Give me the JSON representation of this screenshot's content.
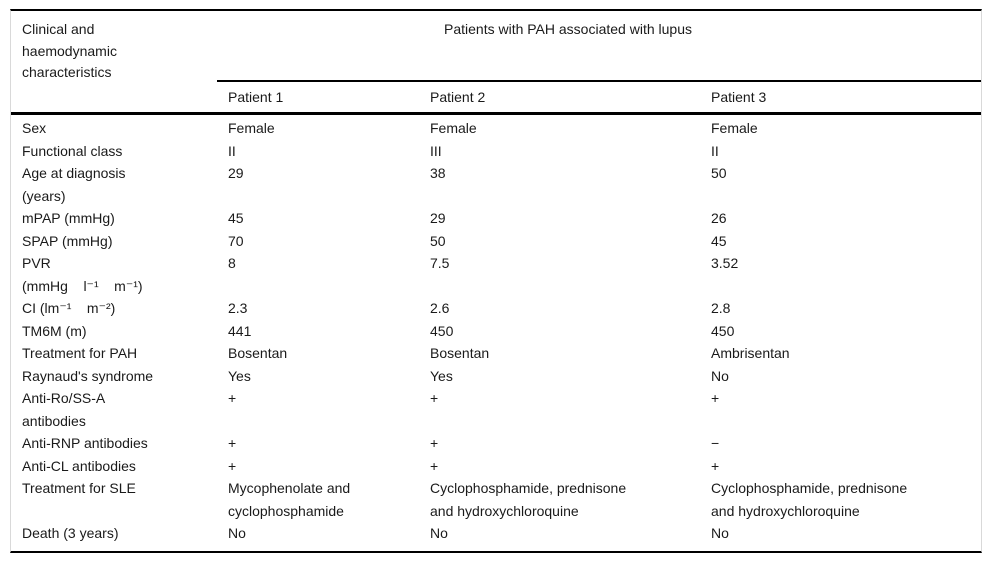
{
  "table": {
    "corner_header": "Clinical and\nhaemodynamic\ncharacteristics",
    "spanner_title": "Patients with PAH associated with lupus",
    "col_headers": [
      "Patient 1",
      "Patient 2",
      "Patient 3"
    ],
    "rows": [
      {
        "label": "Sex",
        "p1": "Female",
        "p2": "Female",
        "p3": "Female"
      },
      {
        "label": "Functional class",
        "p1": "II",
        "p2": "III",
        "p3": "II"
      },
      {
        "label": "Age at diagnosis\n(years)",
        "p1": "29",
        "p2": "38",
        "p3": "50"
      },
      {
        "label": "mPAP (mmHg)",
        "p1": "45",
        "p2": "29",
        "p3": "26"
      },
      {
        "label": "SPAP (mmHg)",
        "p1": "70",
        "p2": "50",
        "p3": "45"
      },
      {
        "label": "PVR\n(mmHg    l⁻¹    m⁻¹)",
        "p1": "8",
        "p2": "7.5",
        "p3": "3.52"
      },
      {
        "label": "CI (lm⁻¹    m⁻²)",
        "p1": "2.3",
        "p2": "2.6",
        "p3": "2.8"
      },
      {
        "label": "TM6M (m)",
        "p1": "441",
        "p2": "450",
        "p3": "450"
      },
      {
        "label": "Treatment for PAH",
        "p1": "Bosentan",
        "p2": "Bosentan",
        "p3": "Ambrisentan"
      },
      {
        "label": "Raynaud's syndrome",
        "p1": "Yes",
        "p2": "Yes",
        "p3": "No"
      },
      {
        "label": "Anti-Ro/SS-A\nantibodies",
        "p1": "+",
        "p2": "+",
        "p3": "+"
      },
      {
        "label": "Anti-RNP antibodies",
        "p1": "+",
        "p2": "+",
        "p3": "−"
      },
      {
        "label": "Anti-CL antibodies",
        "p1": "+",
        "p2": "+",
        "p3": "+"
      },
      {
        "label": "Treatment for SLE",
        "p1": "Mycophenolate and\ncyclophosphamide",
        "p2": "Cyclophosphamide, prednisone\nand hydroxychloroquine",
        "p3": "Cyclophosphamide, prednisone\nand hydroxychloroquine"
      },
      {
        "label": "Death (3 years)",
        "p1": "No",
        "p2": "No",
        "p3": "No"
      }
    ],
    "colors": {
      "text": "#1a1a1a",
      "rule": "#000000",
      "frame_edge": "#d9d9d9",
      "background": "#ffffff"
    }
  }
}
